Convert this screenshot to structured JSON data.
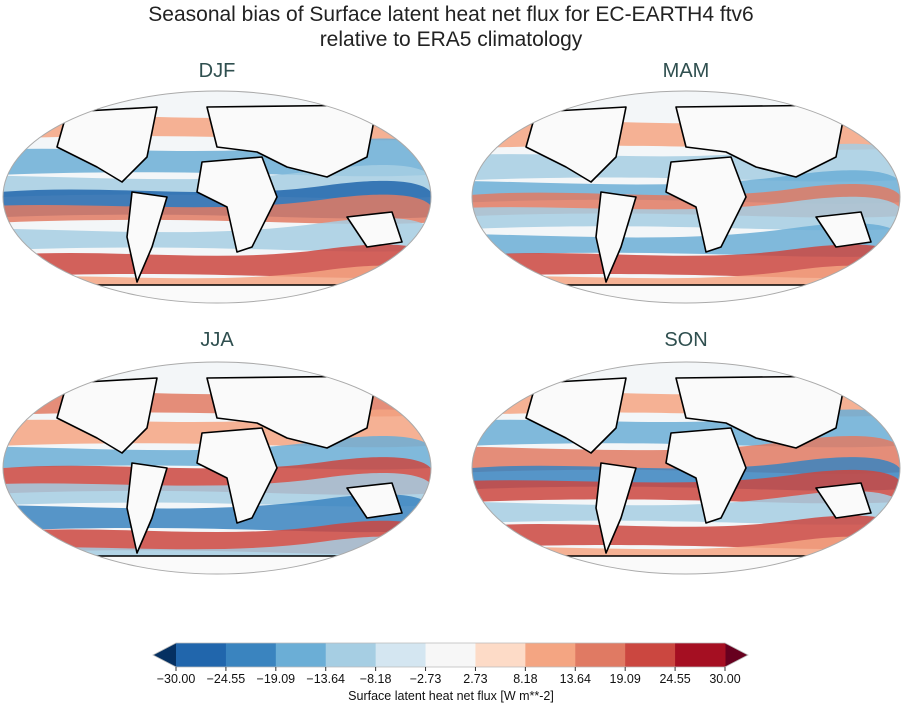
{
  "title_line1": "Seasonal bias of Surface latent heat net flux for EC-EARTH4 ftv6",
  "title_line2": "relative to ERA5 climatology",
  "panels": [
    {
      "title": "DJF"
    },
    {
      "title": "MAM"
    },
    {
      "title": "JJA"
    },
    {
      "title": "SON"
    }
  ],
  "colorbar": {
    "label": "Surface latent heat net flux [W m**-2]",
    "ticks": [
      "−30.00",
      "−24.55",
      "−19.09",
      "−13.64",
      "−8.18",
      "−2.73",
      "2.73",
      "8.18",
      "13.64",
      "19.09",
      "24.55",
      "30.00"
    ],
    "colors": [
      "#2166ac",
      "#3a84bf",
      "#6baed6",
      "#a6cee3",
      "#d4e6f1",
      "#f7f7f7",
      "#fddbc7",
      "#f4a582",
      "#e07a63",
      "#cb4740",
      "#a50f22"
    ],
    "under_color": "#053061",
    "over_color": "#67001f",
    "range": [
      -30,
      30
    ],
    "extend": "both"
  }
}
